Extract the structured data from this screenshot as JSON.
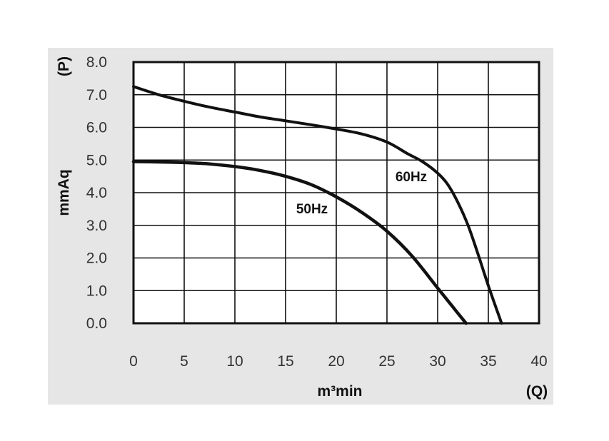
{
  "chart_data": {
    "type": "line",
    "title": "",
    "xlabel": "m³min",
    "ylabel": "mmAq",
    "x_symbol": "(Q)",
    "y_symbol": "(P)",
    "xlim": [
      0,
      40
    ],
    "ylim": [
      0,
      8
    ],
    "x_ticks": [
      0,
      5,
      10,
      15,
      20,
      25,
      30,
      35,
      40
    ],
    "y_ticks": [
      0,
      1,
      2,
      3,
      4,
      5,
      6,
      7,
      8
    ],
    "x_tick_labels": [
      "0",
      "5",
      "10",
      "15",
      "20",
      "25",
      "30",
      "35",
      "40"
    ],
    "y_tick_labels": [
      "0.0",
      "1.0",
      "2.0",
      "3.0",
      "4.0",
      "5.0",
      "6.0",
      "7.0",
      "8.0"
    ],
    "grid": true,
    "series": [
      {
        "name": "60Hz",
        "color": "#111111",
        "x": [
          0,
          2.5,
          5,
          7.5,
          10,
          12.5,
          15,
          17.5,
          20,
          22.5,
          25,
          27,
          28.5,
          30,
          31,
          32,
          33,
          34,
          35,
          36.3
        ],
        "y": [
          7.25,
          7.0,
          6.8,
          6.62,
          6.47,
          6.32,
          6.2,
          6.08,
          5.95,
          5.8,
          5.55,
          5.2,
          4.95,
          4.6,
          4.25,
          3.7,
          3.0,
          2.1,
          1.15,
          0.0
        ]
      },
      {
        "name": "50Hz",
        "color": "#111111",
        "x": [
          0,
          2.5,
          5,
          7.5,
          10,
          12.5,
          15,
          17.5,
          20,
          22.5,
          25,
          27.5,
          30,
          31.5,
          32.8
        ],
        "y": [
          4.95,
          4.94,
          4.92,
          4.88,
          4.8,
          4.68,
          4.5,
          4.25,
          3.87,
          3.4,
          2.82,
          2.05,
          1.08,
          0.5,
          0.0
        ]
      }
    ]
  }
}
